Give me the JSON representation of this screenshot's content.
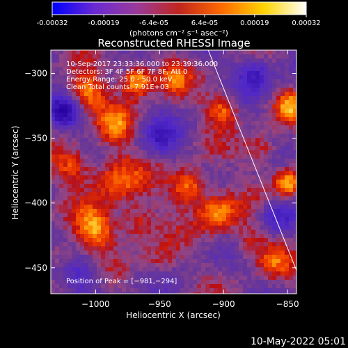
{
  "colorbar": {
    "tick_labels": [
      "-0.00032",
      "-0.00019",
      "-6.4e-05",
      "6.4e-05",
      "0.00019",
      "0.00032"
    ],
    "tick_values": [
      -0.00032,
      -0.00019,
      -6.4e-05,
      6.4e-05,
      0.00019,
      0.00032
    ],
    "range": [
      -0.00032,
      0.00032
    ],
    "unit_label": "(photons cm⁻² s⁻¹ asec⁻²)",
    "gradient_colors": [
      "#0000ff",
      "#6a2ad2",
      "#9a3b9a",
      "#c0261e",
      "#ff6a00",
      "#ffd400",
      "#ffffff"
    ]
  },
  "chart_data": {
    "type": "heatmap",
    "title": "Reconstructed RHESSI Image",
    "xlabel": "Heliocentric X (arcsec)",
    "ylabel": "Heliocentric Y (arcsec)",
    "xlim": [
      -1035,
      -843
    ],
    "ylim": [
      -470,
      -282
    ],
    "x_ticks": [
      -1000,
      -950,
      -900,
      -850
    ],
    "y_ticks": [
      -300,
      -350,
      -400,
      -450
    ],
    "x_tick_labels": [
      "−1000",
      "−950",
      "−900",
      "−850"
    ],
    "y_tick_labels": [
      "−300",
      "−350",
      "−400",
      "−450"
    ],
    "info_lines": [
      "10-Sep-2017 23:33:36.000 to 23:39:36.000",
      "Detectors: 3F 4F 5F 6F 7F 8F, Att 0",
      "Energy Range: 25.0 - 50.0 keV",
      "Clean     Total counts: 7.91E+03"
    ],
    "peak_text": "Position of Peak = [−981,−294]",
    "peak": [
      -981,
      -294
    ],
    "limb_line": [
      [
        -912,
        -282
      ],
      [
        -843,
        -452
      ]
    ],
    "hot_spots": [
      {
        "x": -968,
        "y": -305,
        "a": 1.0,
        "s": 9
      },
      {
        "x": -1007,
        "y": -315,
        "a": 0.75,
        "s": 10
      },
      {
        "x": -985,
        "y": -340,
        "a": 0.55,
        "s": 10
      },
      {
        "x": -940,
        "y": -302,
        "a": 0.55,
        "s": 9
      },
      {
        "x": -927,
        "y": -388,
        "a": 0.85,
        "s": 10
      },
      {
        "x": -985,
        "y": -380,
        "a": 0.65,
        "s": 14
      },
      {
        "x": -1018,
        "y": -372,
        "a": 0.55,
        "s": 10
      },
      {
        "x": -1000,
        "y": -420,
        "a": 0.8,
        "s": 11
      },
      {
        "x": -968,
        "y": -415,
        "a": 0.6,
        "s": 10
      },
      {
        "x": -905,
        "y": -408,
        "a": 0.75,
        "s": 11
      },
      {
        "x": -900,
        "y": -328,
        "a": 0.7,
        "s": 9
      },
      {
        "x": -870,
        "y": -360,
        "a": 0.5,
        "s": 10
      },
      {
        "x": -850,
        "y": -385,
        "a": 0.85,
        "s": 8
      },
      {
        "x": -848,
        "y": -325,
        "a": 0.65,
        "s": 8
      },
      {
        "x": -880,
        "y": -430,
        "a": 0.45,
        "s": 10
      },
      {
        "x": -860,
        "y": -445,
        "a": 0.4,
        "s": 9
      },
      {
        "x": -1028,
        "y": -440,
        "a": 0.45,
        "s": 8
      },
      {
        "x": -950,
        "y": -445,
        "a": 0.35,
        "s": 10
      }
    ],
    "cold_spots": [
      {
        "x": -1025,
        "y": -330,
        "a": 0.7,
        "s": 8
      },
      {
        "x": -875,
        "y": -300,
        "a": 0.6,
        "s": 10
      },
      {
        "x": -860,
        "y": -410,
        "a": 0.55,
        "s": 9
      },
      {
        "x": -950,
        "y": -350,
        "a": 0.45,
        "s": 9
      },
      {
        "x": -1010,
        "y": -455,
        "a": 0.4,
        "s": 10
      }
    ]
  },
  "footer": {
    "timestamp": "10-May-2022 05:01"
  }
}
